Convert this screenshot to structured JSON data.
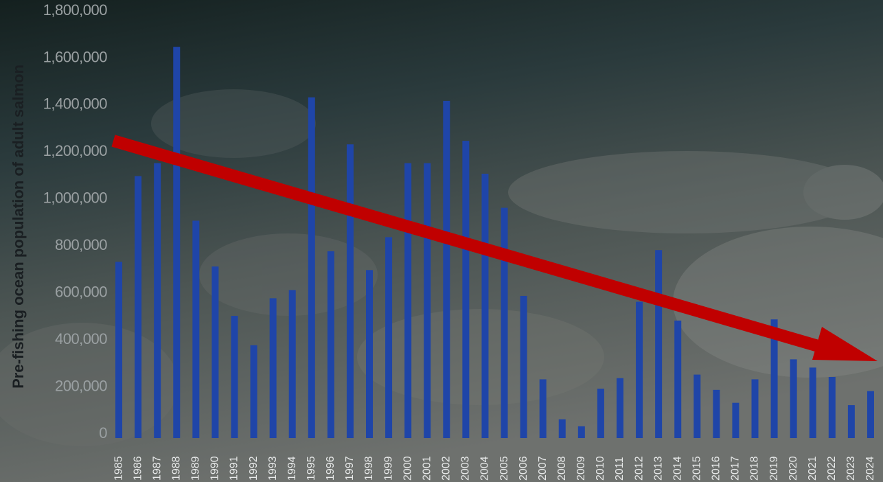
{
  "chart_data": {
    "type": "bar",
    "y_label": "Pre-fishing ocean population of adult salmon",
    "categories": [
      "1985",
      "1986",
      "1987",
      "1988",
      "1989",
      "1990",
      "1991",
      "1992",
      "1993",
      "1994",
      "1995",
      "1996",
      "1997",
      "1998",
      "1999",
      "2000",
      "2001",
      "2002",
      "2003",
      "2004",
      "2005",
      "2006",
      "2007",
      "2008",
      "2009",
      "2010",
      "2011",
      "2012",
      "2013",
      "2014",
      "2015",
      "2016",
      "2017",
      "2018",
      "2019",
      "2020",
      "2021",
      "2022",
      "2023",
      "2024"
    ],
    "values": [
      750000,
      1115000,
      1170000,
      1665000,
      925000,
      730000,
      520000,
      395000,
      595000,
      630000,
      1450000,
      795000,
      1250000,
      715000,
      855000,
      1170000,
      1170000,
      1435000,
      1265000,
      1125000,
      980000,
      605000,
      250000,
      80000,
      50000,
      210000,
      255000,
      580000,
      800000,
      500000,
      270000,
      205000,
      150000,
      250000,
      505000,
      335000,
      300000,
      260000,
      140000,
      200000
    ],
    "color": "#1f45a8",
    "ylim": [
      0,
      1800000
    ],
    "yticks": [
      0,
      {
        "value": 200000,
        "label": "200,000"
      },
      {
        "value": 400000,
        "label": "400,000"
      },
      {
        "value": 600000,
        "label": "600,000"
      },
      {
        "value": 800000,
        "label": "800,000"
      },
      {
        "value": 1000000,
        "label": "1,000,000"
      },
      {
        "value": 1200000,
        "label": "1,200,000"
      },
      {
        "value": 1400000,
        "label": "1,400,000"
      },
      {
        "value": 1600000,
        "label": "1,600,000"
      },
      {
        "value": 1800000,
        "label": "1,800,000"
      }
    ],
    "grid": false
  }
}
